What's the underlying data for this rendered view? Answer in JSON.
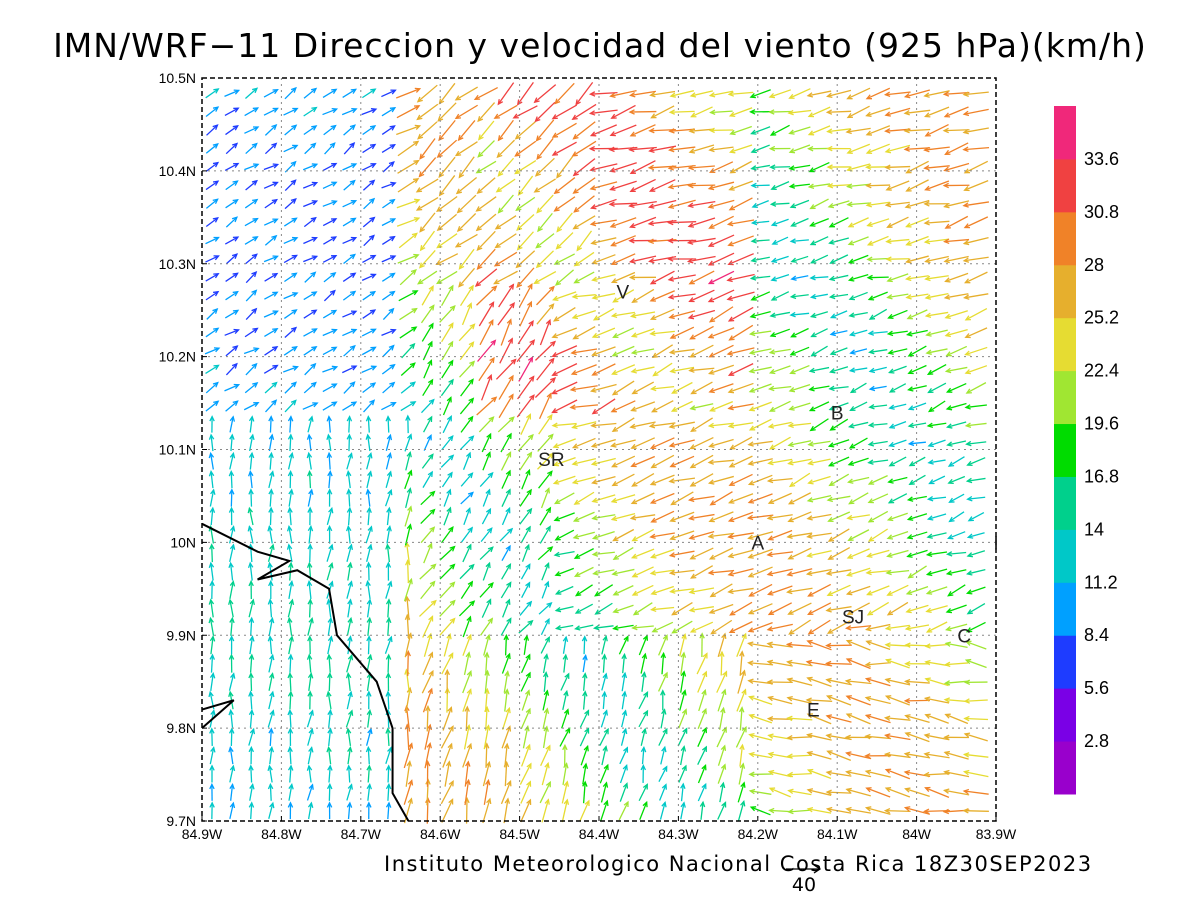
{
  "title": "IMN/WRF−11 Direccion y velocidad del viento (925 hPa)(km/h)",
  "footer": "Instituto Meteorologico Nacional Costa Rica 18Z30SEP2023",
  "reference_vector": {
    "label": "40",
    "speed": 40
  },
  "map": {
    "lon_range": [
      -84.9,
      -83.9
    ],
    "lat_range": [
      9.7,
      10.5
    ],
    "grid": "dotted",
    "x_tick_labels": [
      "84.9W",
      "84.8W",
      "84.7W",
      "84.6W",
      "84.5W",
      "84.4W",
      "84.3W",
      "84.2W",
      "84.1W",
      "84W",
      "83.9W"
    ],
    "y_tick_labels": [
      "9.7N",
      "9.8N",
      "9.9N",
      "10N",
      "10.1N",
      "10.2N",
      "10.3N",
      "10.4N",
      "10.5N"
    ],
    "stations": [
      {
        "label": "V",
        "lon": -84.37,
        "lat": 10.27
      },
      {
        "label": "B",
        "lon": -84.1,
        "lat": 10.14
      },
      {
        "label": "SR",
        "lon": -84.46,
        "lat": 10.09
      },
      {
        "label": "A",
        "lon": -84.2,
        "lat": 10.0
      },
      {
        "label": "I",
        "lon": -83.9,
        "lat": 10.0
      },
      {
        "label": "SJ",
        "lon": -84.08,
        "lat": 9.92
      },
      {
        "label": "C",
        "lon": -83.94,
        "lat": 9.9
      },
      {
        "label": "E",
        "lon": -84.13,
        "lat": 9.82
      }
    ],
    "coastline": [
      [
        -84.9,
        10.02
      ],
      [
        -84.83,
        9.99
      ],
      [
        -84.79,
        9.98
      ],
      [
        -84.83,
        9.96
      ],
      [
        -84.78,
        9.97
      ],
      [
        -84.74,
        9.95
      ],
      [
        -84.73,
        9.9
      ],
      [
        -84.68,
        9.85
      ],
      [
        -84.66,
        9.8
      ],
      [
        -84.66,
        9.76
      ],
      [
        -84.66,
        9.73
      ],
      [
        -84.64,
        9.7
      ]
    ],
    "peninsula_tip": [
      [
        -84.9,
        9.82
      ],
      [
        -84.86,
        9.83
      ],
      [
        -84.9,
        9.8
      ]
    ]
  },
  "colorbar": {
    "colors": [
      "#9900cc",
      "#7a00e6",
      "#1e3cff",
      "#00a0ff",
      "#00c8c8",
      "#00d08c",
      "#00dc00",
      "#a0e632",
      "#e6dc32",
      "#e6af2d",
      "#f08228",
      "#f04141",
      "#f0287a"
    ],
    "labels": [
      "2.8",
      "5.6",
      "8.4",
      "11.2",
      "14",
      "16.8",
      "19.6",
      "22.4",
      "25.2",
      "28",
      "30.8",
      "33.6"
    ]
  }
}
